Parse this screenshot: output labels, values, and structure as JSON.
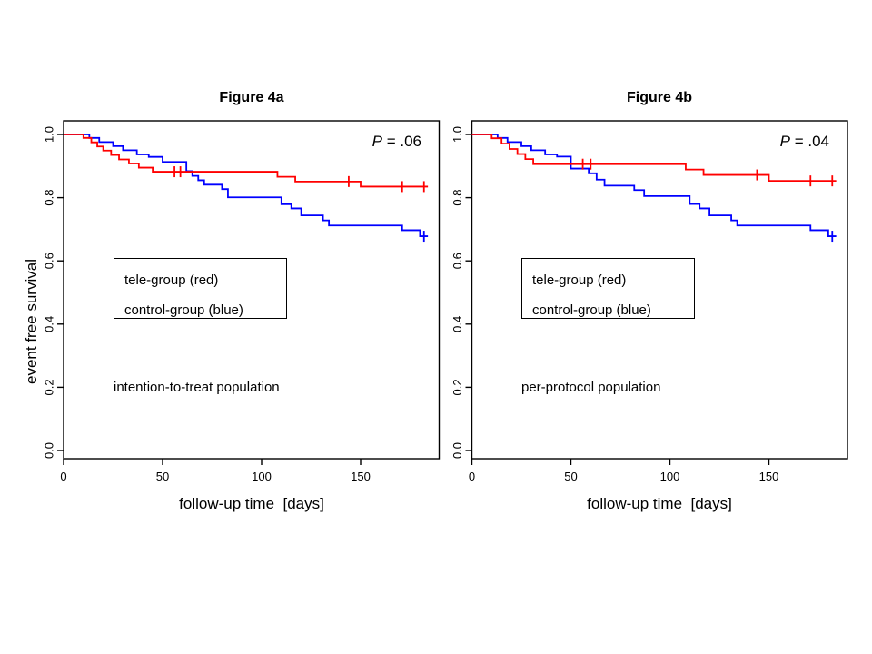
{
  "page": {
    "background": "#ffffff"
  },
  "colors": {
    "tele_group": "#ff0000",
    "control_group": "#0000ff",
    "axis": "#000000"
  },
  "chart_data": [
    {
      "type": "line",
      "subtype": "kaplan-meier-step",
      "title": "Figure 4a",
      "population_label": "intention-to-treat population",
      "p_symbol": "P",
      "p_rest": " = .06",
      "xlabel": "follow-up time  [days]",
      "ylabel": "event free survival",
      "xlim": [
        0,
        189
      ],
      "ylim": [
        0,
        1.04
      ],
      "grid": false,
      "x_ticks": [
        0,
        50,
        100,
        150
      ],
      "x_tick_labels": [
        "0",
        "50",
        "100",
        "150"
      ],
      "y_ticks": [
        0,
        0.2,
        0.4,
        0.6,
        0.8,
        1.0
      ],
      "y_tick_labels": [
        "0.0",
        "0.2",
        "0.4",
        "0.6",
        "0.8",
        "1.0"
      ],
      "legend": {
        "position": "middle-left-box",
        "items": [
          {
            "label": "tele-group (red)"
          },
          {
            "label": "control-group (blue)"
          }
        ]
      },
      "end_day": 184,
      "series": [
        {
          "name": "control-group",
          "color": "#0000ff",
          "steps": [
            [
              13,
              0.989
            ],
            [
              18,
              0.976
            ],
            [
              25,
              0.963
            ],
            [
              30,
              0.95
            ],
            [
              37,
              0.937
            ],
            [
              43,
              0.929
            ],
            [
              50,
              0.913
            ],
            [
              62,
              0.884
            ],
            [
              65,
              0.869
            ],
            [
              68,
              0.855
            ],
            [
              71,
              0.841
            ],
            [
              80,
              0.827
            ],
            [
              83,
              0.801
            ],
            [
              110,
              0.779
            ],
            [
              115,
              0.766
            ],
            [
              120,
              0.744
            ],
            [
              131,
              0.728
            ],
            [
              134,
              0.712
            ],
            [
              171,
              0.697
            ],
            [
              180,
              0.678
            ]
          ],
          "censor": [
            [
              182,
              0.678
            ]
          ]
        },
        {
          "name": "tele-group",
          "color": "#ff0000",
          "steps": [
            [
              10,
              0.989
            ],
            [
              14,
              0.975
            ],
            [
              17,
              0.962
            ],
            [
              20,
              0.949
            ],
            [
              24,
              0.935
            ],
            [
              28,
              0.921
            ],
            [
              33,
              0.908
            ],
            [
              38,
              0.895
            ],
            [
              45,
              0.882
            ],
            [
              108,
              0.866
            ],
            [
              117,
              0.851
            ],
            [
              150,
              0.835
            ]
          ],
          "censor": [
            [
              56,
              0.882
            ],
            [
              59,
              0.882
            ],
            [
              144,
              0.851
            ],
            [
              171,
              0.835
            ],
            [
              182,
              0.835
            ]
          ]
        }
      ]
    },
    {
      "type": "line",
      "subtype": "kaplan-meier-step",
      "title": "Figure 4b",
      "population_label": "per-protocol population",
      "p_symbol": "P",
      "p_rest": " = .04",
      "xlabel": "follow-up time  [days]",
      "ylabel": "event free survival",
      "xlim": [
        0,
        189
      ],
      "ylim": [
        0,
        1.04
      ],
      "grid": false,
      "x_ticks": [
        0,
        50,
        100,
        150
      ],
      "x_tick_labels": [
        "0",
        "50",
        "100",
        "150"
      ],
      "y_ticks": [
        0,
        0.2,
        0.4,
        0.6,
        0.8,
        1.0
      ],
      "y_tick_labels": [
        "0.0",
        "0.2",
        "0.4",
        "0.6",
        "0.8",
        "1.0"
      ],
      "legend": {
        "position": "middle-left-box",
        "items": [
          {
            "label": "tele-group (red)"
          },
          {
            "label": "control-group (blue)"
          }
        ]
      },
      "end_day": 184,
      "series": [
        {
          "name": "control-group",
          "color": "#0000ff",
          "steps": [
            [
              13,
              0.989
            ],
            [
              18,
              0.976
            ],
            [
              25,
              0.963
            ],
            [
              30,
              0.95
            ],
            [
              37,
              0.937
            ],
            [
              43,
              0.93
            ],
            [
              50,
              0.892
            ],
            [
              59,
              0.877
            ],
            [
              63,
              0.857
            ],
            [
              67,
              0.838
            ],
            [
              82,
              0.824
            ],
            [
              87,
              0.805
            ],
            [
              110,
              0.78
            ],
            [
              115,
              0.766
            ],
            [
              120,
              0.744
            ],
            [
              131,
              0.728
            ],
            [
              134,
              0.712
            ],
            [
              171,
              0.697
            ],
            [
              180,
              0.678
            ]
          ],
          "censor": [
            [
              182,
              0.678
            ]
          ]
        },
        {
          "name": "tele-group",
          "color": "#ff0000",
          "steps": [
            [
              10,
              0.988
            ],
            [
              15,
              0.971
            ],
            [
              19,
              0.954
            ],
            [
              23,
              0.938
            ],
            [
              27,
              0.922
            ],
            [
              31,
              0.906
            ],
            [
              108,
              0.889
            ],
            [
              117,
              0.872
            ],
            [
              150,
              0.853
            ]
          ],
          "censor": [
            [
              56,
              0.906
            ],
            [
              60,
              0.906
            ],
            [
              144,
              0.872
            ],
            [
              171,
              0.853
            ],
            [
              182,
              0.853
            ]
          ]
        }
      ]
    }
  ]
}
